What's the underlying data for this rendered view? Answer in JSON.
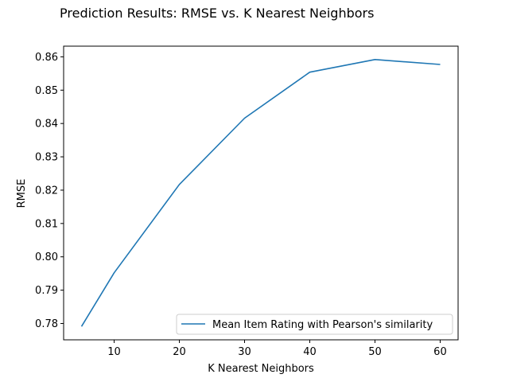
{
  "chart_data": {
    "type": "line",
    "title": "Prediction Results: RMSE vs. K Nearest Neighbors",
    "xlabel": "K Nearest Neighbors",
    "ylabel": "RMSE",
    "x": [
      5,
      10,
      20,
      30,
      40,
      50,
      60
    ],
    "series": [
      {
        "name": "Mean Item Rating with Pearson's similarity",
        "values": [
          0.7791,
          0.7952,
          0.8217,
          0.8416,
          0.8554,
          0.8592,
          0.8577
        ],
        "color": "#1f77b4"
      }
    ],
    "xlim": [
      2.25,
      62.75
    ],
    "ylim": [
      0.7751,
      0.8632
    ],
    "xticks": [
      10,
      20,
      30,
      40,
      50,
      60
    ],
    "xtick_labels": [
      "10",
      "20",
      "30",
      "40",
      "50",
      "60"
    ],
    "yticks": [
      0.78,
      0.79,
      0.8,
      0.81,
      0.82,
      0.83,
      0.84,
      0.85,
      0.86
    ],
    "ytick_labels": [
      "0.78",
      "0.79",
      "0.80",
      "0.81",
      "0.82",
      "0.83",
      "0.84",
      "0.85",
      "0.86"
    ],
    "grid": false,
    "legend_position": "lower right"
  }
}
